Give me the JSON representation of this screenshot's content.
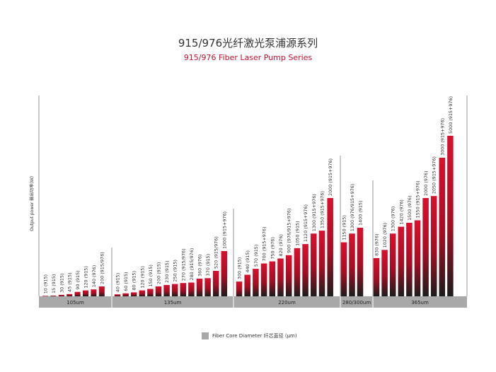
{
  "title_cn": "915/976光纤激光泵浦源系列",
  "title_en": "915/976 Fiber Laser Pump Series",
  "y_label": "Output power 输出功率(W)",
  "legend_label": "Fiber Core Diameter  纤芯直径 (μm)",
  "colors": {
    "bar_top": "#d8102e",
    "bar_bottom": "#1c1c1c",
    "axis_band": "#a8a8a8",
    "axis_text": "#222222"
  },
  "chart_data": {
    "type": "bar",
    "title": "915/976光纤激光泵浦源系列",
    "subtitle": "915/976 Fiber Laser Pump Series",
    "ylabel": "Output power 输出功率(W)",
    "xlabel": "Fiber Core Diameter  纤芯直径 (μm)",
    "ylim": [
      0,
      5000
    ],
    "groups": [
      {
        "name": "105um",
        "bars": [
          {
            "label": "10 (915)",
            "value": 10
          },
          {
            "label": "15 (915)",
            "value": 15
          },
          {
            "label": "30 (915)",
            "value": 30
          },
          {
            "label": "45 (915)",
            "value": 45
          },
          {
            "label": "90 (915)",
            "value": 90
          },
          {
            "label": "120 (915)",
            "value": 120
          },
          {
            "label": "140 (976)",
            "value": 140
          },
          {
            "label": "200 (915/976)",
            "value": 200
          }
        ]
      },
      {
        "name": "135um",
        "bars": [
          {
            "label": "40 (915)",
            "value": 40
          },
          {
            "label": "60 (915)",
            "value": 60
          },
          {
            "label": "80 (915)",
            "value": 80
          },
          {
            "label": "120 (915)",
            "value": 120
          },
          {
            "label": "150 (915)",
            "value": 150
          },
          {
            "label": "200 (915)",
            "value": 200
          },
          {
            "label": "230 (915)",
            "value": 230
          },
          {
            "label": "250 (915)",
            "value": 250
          },
          {
            "label": "270 (915/976)",
            "value": 270
          },
          {
            "label": "280 (915/976)",
            "value": 280
          },
          {
            "label": "360 (976)",
            "value": 360
          },
          {
            "label": "370 (915)",
            "value": 370
          },
          {
            "label": "520 (915/976)",
            "value": 520
          },
          {
            "label": "1000 (915+976)",
            "value": 1000
          }
        ]
      },
      {
        "name": "220um",
        "bars": [
          {
            "label": "300 (915)",
            "value": 300
          },
          {
            "label": "440 (915)",
            "value": 440
          },
          {
            "label": "570 (915)",
            "value": 570
          },
          {
            "label": "700 (915+976)",
            "value": 700
          },
          {
            "label": "750 (976)",
            "value": 750
          },
          {
            "label": "820 (976)",
            "value": 820
          },
          {
            "label": "900 (976/915+976)",
            "value": 900
          },
          {
            "label": "1050 (915)",
            "value": 1050
          },
          {
            "label": "1120 (915+976)",
            "value": 1120
          },
          {
            "label": "1300 (915+976)",
            "value": 1300
          },
          {
            "label": "1350 (915+976)",
            "value": 1350
          },
          {
            "label": "2000 (915+976)",
            "value": 2000
          }
        ]
      },
      {
        "name": "280/300um",
        "bars": [
          {
            "label": "1150 (915)",
            "value": 1150
          },
          {
            "label": "1300 (976/915+976)",
            "value": 1300
          },
          {
            "label": "1400 (915)",
            "value": 1400
          }
        ]
      },
      {
        "name": "365um",
        "bars": [
          {
            "label": "830 (976)",
            "value": 830
          },
          {
            "label": "1020 (976)",
            "value": 1020
          },
          {
            "label": "1300 (976)",
            "value": 1300
          },
          {
            "label": "1420 (976)",
            "value": 1420
          },
          {
            "label": "1500 (976)",
            "value": 1500
          },
          {
            "label": "1550 (915+976)",
            "value": 1550
          },
          {
            "label": "2000 (976)",
            "value": 2000
          },
          {
            "label": "2050 (915+976)",
            "value": 2050
          },
          {
            "label": "3000 (915+976)",
            "value": 3000
          },
          {
            "label": "5000 (915+976)",
            "value": 5000
          }
        ]
      }
    ]
  }
}
